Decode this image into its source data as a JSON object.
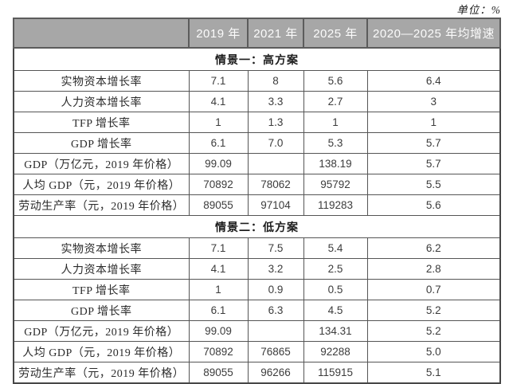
{
  "unit_note": "单位：%",
  "colors": {
    "header_background": "#a7a7a7",
    "header_text": "#fbfbfb",
    "border": "#555555",
    "body_text": "#333333",
    "page_background": "#ffffff"
  },
  "table": {
    "columns": [
      "",
      "2019 年",
      "2021 年",
      "2025 年",
      "2020—2025 年均增速"
    ],
    "sections": [
      {
        "title": "情景一：高方案",
        "rows": [
          {
            "label": "实物资本增长率",
            "values": [
              "7.1",
              "8",
              "5.6",
              "6.4"
            ]
          },
          {
            "label": "人力资本增长率",
            "values": [
              "4.1",
              "3.3",
              "2.7",
              "3"
            ]
          },
          {
            "label": "TFP 增长率",
            "values": [
              "1",
              "1.3",
              "1",
              "1"
            ]
          },
          {
            "label": "GDP 增长率",
            "values": [
              "6.1",
              "7.0",
              "5.3",
              "5.7"
            ]
          },
          {
            "label": "GDP（万亿元，2019 年价格）",
            "values": [
              "99.09",
              "",
              "138.19",
              "5.7"
            ]
          },
          {
            "label": "人均 GDP（元，2019 年价格）",
            "values": [
              "70892",
              "78062",
              "95792",
              "5.5"
            ]
          },
          {
            "label": "劳动生产率（元，2019 年价格）",
            "values": [
              "89055",
              "97104",
              "119283",
              "5.6"
            ]
          }
        ]
      },
      {
        "title": "情景二：低方案",
        "rows": [
          {
            "label": "实物资本增长率",
            "values": [
              "7.1",
              "7.5",
              "5.4",
              "6.2"
            ]
          },
          {
            "label": "人力资本增长率",
            "values": [
              "4.1",
              "3.2",
              "2.5",
              "2.8"
            ]
          },
          {
            "label": "TFP 增长率",
            "values": [
              "1",
              "0.9",
              "0.5",
              "0.7"
            ]
          },
          {
            "label": "GDP 增长率",
            "values": [
              "6.1",
              "6.3",
              "4.5",
              "5.2"
            ]
          },
          {
            "label": "GDP（万亿元，2019 年价格）",
            "values": [
              "99.09",
              "",
              "134.31",
              "5.2"
            ]
          },
          {
            "label": "人均 GDP（元，2019 年价格）",
            "values": [
              "70892",
              "76865",
              "92288",
              "5.0"
            ]
          },
          {
            "label": "劳动生产率（元，2019 年价格）",
            "values": [
              "89055",
              "96266",
              "115915",
              "5.1"
            ]
          }
        ]
      }
    ]
  }
}
